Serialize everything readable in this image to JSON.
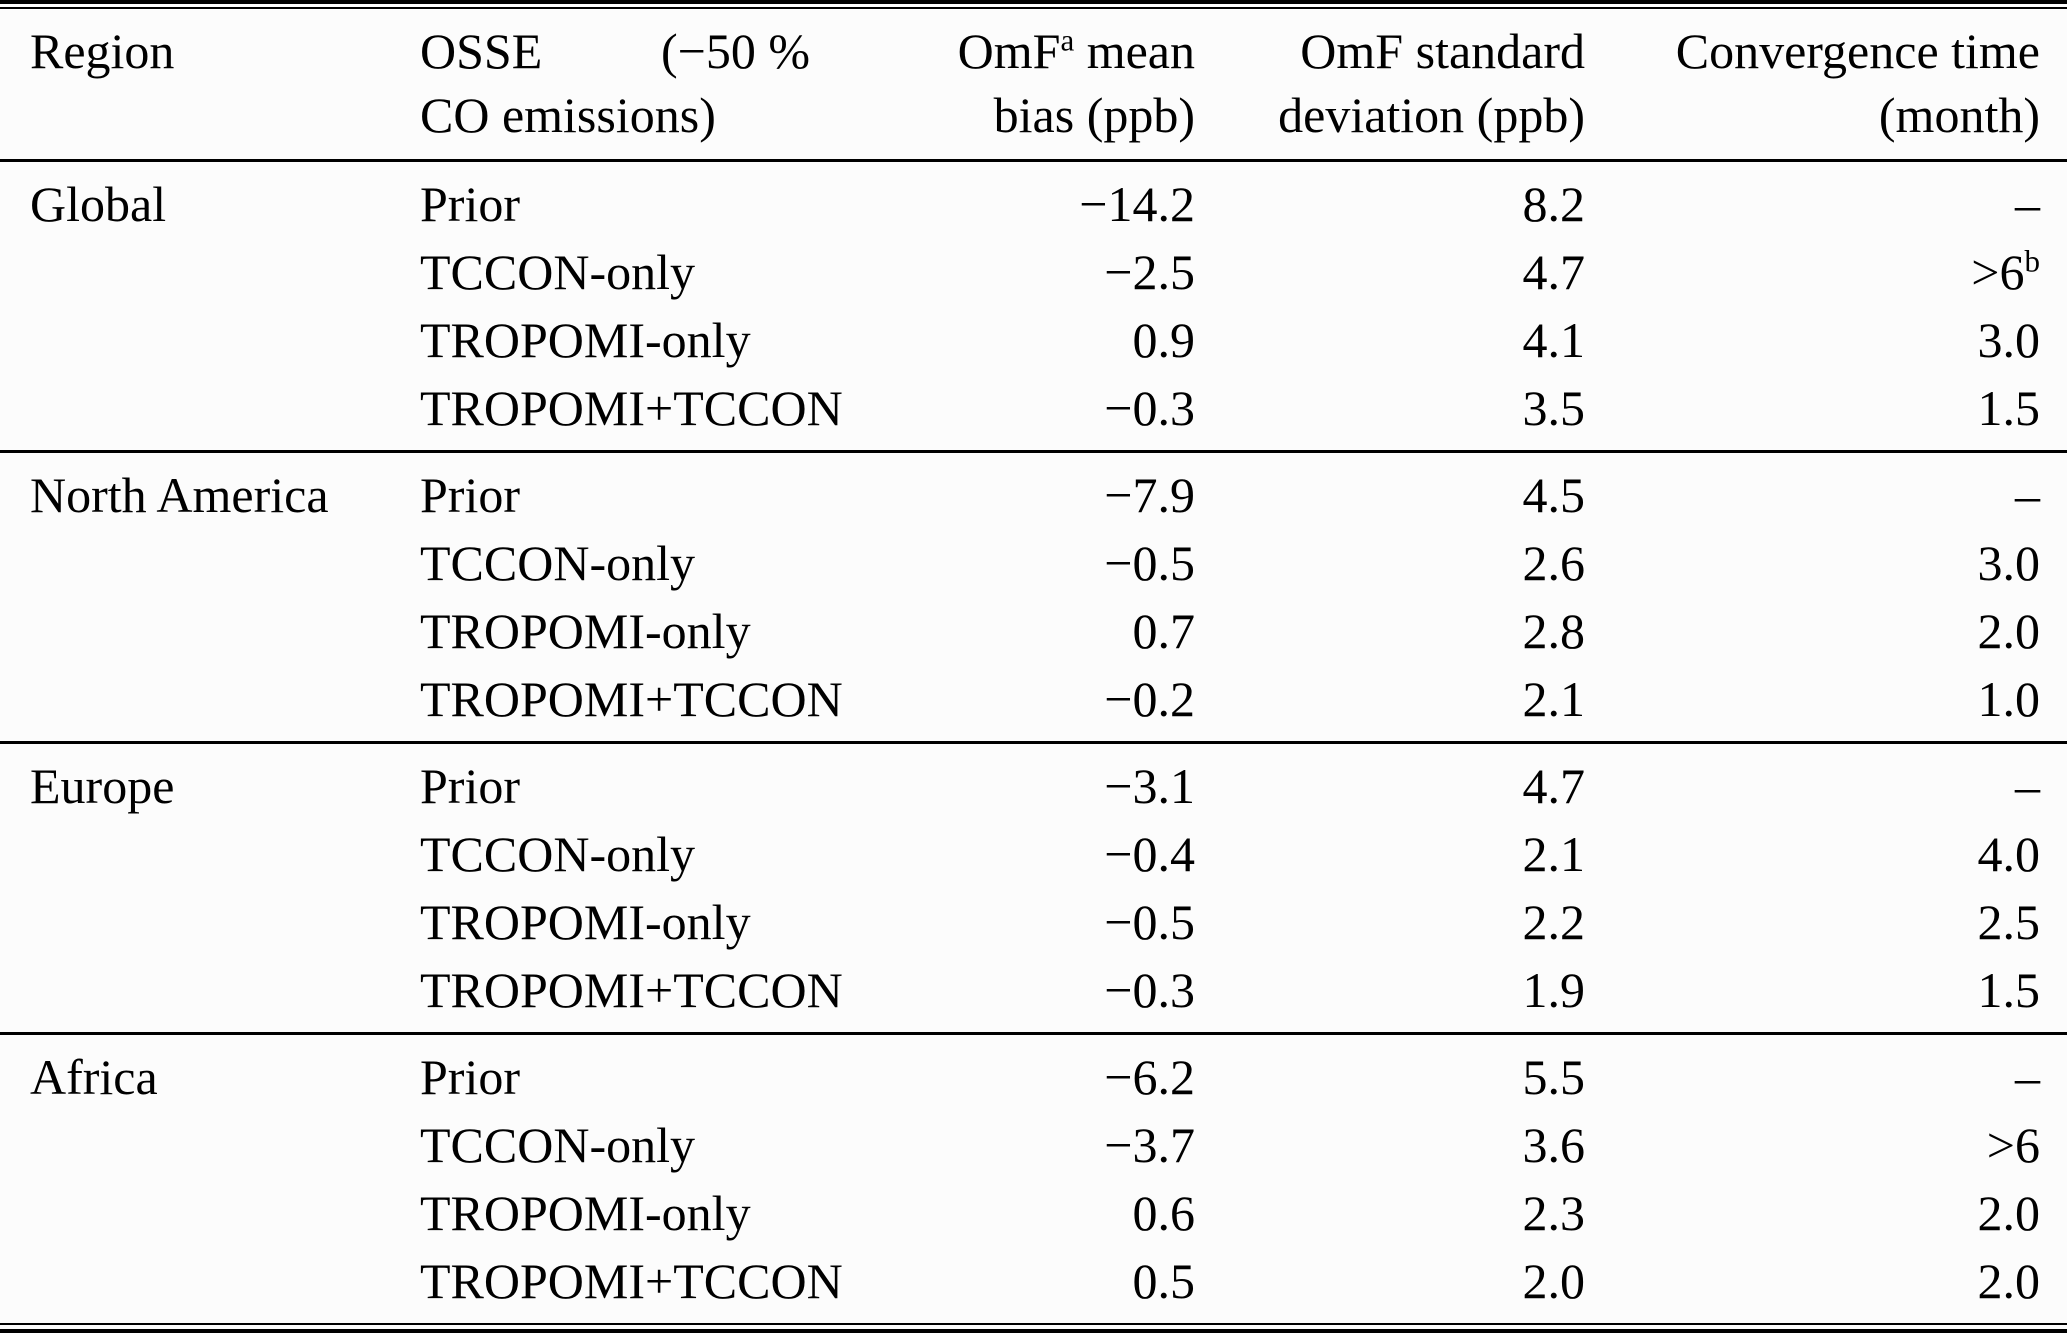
{
  "table": {
    "columns": {
      "region": "Region",
      "osse_line1_left": "OSSE",
      "osse_line1_right": "(−50 %",
      "osse_line2": "CO emissions)",
      "bias_line1_pre": "OmF",
      "bias_sup": "a",
      "bias_line1_post": " mean",
      "bias_line2": "bias (ppb)",
      "sd_line1": "OmF standard",
      "sd_line2": "deviation (ppb)",
      "conv_line1": "Convergence time",
      "conv_line2": "(month)"
    },
    "sections": [
      {
        "region": "Global",
        "rows": [
          {
            "scenario": "Prior",
            "bias": "−14.2",
            "sd": "8.2",
            "conv": "–",
            "conv_sup": ""
          },
          {
            "scenario": "TCCON-only",
            "bias": "−2.5",
            "sd": "4.7",
            "conv": ">6",
            "conv_sup": "b"
          },
          {
            "scenario": "TROPOMI-only",
            "bias": "0.9",
            "sd": "4.1",
            "conv": "3.0",
            "conv_sup": ""
          },
          {
            "scenario": "TROPOMI+TCCON",
            "bias": "−0.3",
            "sd": "3.5",
            "conv": "1.5",
            "conv_sup": ""
          }
        ]
      },
      {
        "region": "North America",
        "rows": [
          {
            "scenario": "Prior",
            "bias": "−7.9",
            "sd": "4.5",
            "conv": "–",
            "conv_sup": ""
          },
          {
            "scenario": "TCCON-only",
            "bias": "−0.5",
            "sd": "2.6",
            "conv": "3.0",
            "conv_sup": ""
          },
          {
            "scenario": "TROPOMI-only",
            "bias": "0.7",
            "sd": "2.8",
            "conv": "2.0",
            "conv_sup": ""
          },
          {
            "scenario": "TROPOMI+TCCON",
            "bias": "−0.2",
            "sd": "2.1",
            "conv": "1.0",
            "conv_sup": ""
          }
        ]
      },
      {
        "region": "Europe",
        "rows": [
          {
            "scenario": "Prior",
            "bias": "−3.1",
            "sd": "4.7",
            "conv": "–",
            "conv_sup": ""
          },
          {
            "scenario": "TCCON-only",
            "bias": "−0.4",
            "sd": "2.1",
            "conv": "4.0",
            "conv_sup": ""
          },
          {
            "scenario": "TROPOMI-only",
            "bias": "−0.5",
            "sd": "2.2",
            "conv": "2.5",
            "conv_sup": ""
          },
          {
            "scenario": "TROPOMI+TCCON",
            "bias": "−0.3",
            "sd": "1.9",
            "conv": "1.5",
            "conv_sup": ""
          }
        ]
      },
      {
        "region": "Africa",
        "rows": [
          {
            "scenario": "Prior",
            "bias": "−6.2",
            "sd": "5.5",
            "conv": "–",
            "conv_sup": ""
          },
          {
            "scenario": "TCCON-only",
            "bias": "−3.7",
            "sd": "3.6",
            "conv": ">6",
            "conv_sup": ""
          },
          {
            "scenario": "TROPOMI-only",
            "bias": "0.6",
            "sd": "2.3",
            "conv": "2.0",
            "conv_sup": ""
          },
          {
            "scenario": "TROPOMI+TCCON",
            "bias": "0.5",
            "sd": "2.0",
            "conv": "2.0",
            "conv_sup": ""
          }
        ]
      }
    ]
  }
}
